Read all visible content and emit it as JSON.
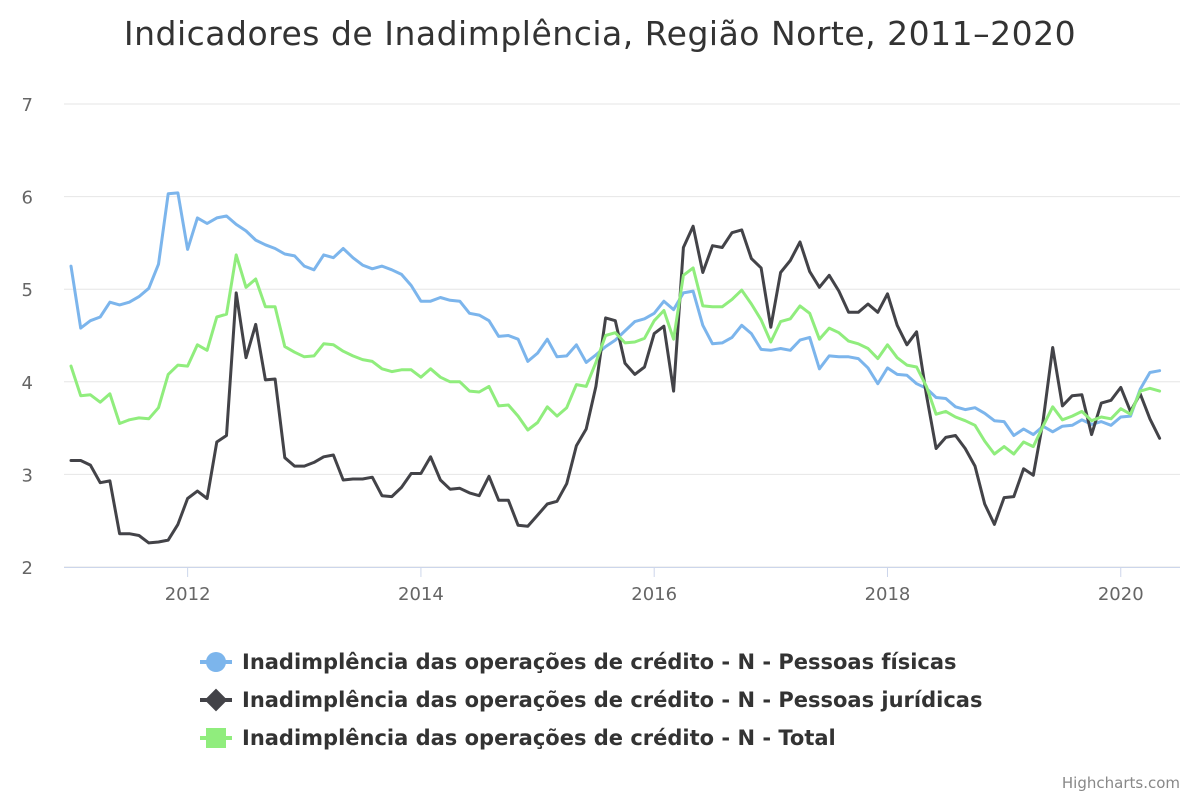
{
  "chart_data": {
    "type": "line",
    "title": "Indicadores de Inadimplência, Região Norte, 2011–2020",
    "xlabel": "",
    "ylabel": "",
    "x_start": "2011-01",
    "x_ticks": [
      {
        "label": "2012",
        "value": "2012-01"
      },
      {
        "label": "2014",
        "value": "2014-01"
      },
      {
        "label": "2016",
        "value": "2016-01"
      },
      {
        "label": "2018",
        "value": "2018-01"
      },
      {
        "label": "2020",
        "value": "2020-01"
      }
    ],
    "xlim": [
      "2011-01",
      "2020-06"
    ],
    "ylim": [
      2,
      7
    ],
    "y_ticks": [
      "2",
      "3",
      "4",
      "5",
      "6",
      "7"
    ],
    "grid": "horizontal",
    "legend_position": "bottom",
    "series": [
      {
        "name": "Inadimplência das operações de crédito - N - Pessoas físicas",
        "color": "#7cb5ec",
        "marker": "circle",
        "values": [
          5.25,
          4.58,
          4.66,
          4.7,
          4.86,
          4.83,
          4.86,
          4.92,
          5.01,
          5.27,
          6.03,
          6.04,
          5.43,
          5.77,
          5.71,
          5.77,
          5.79,
          5.7,
          5.63,
          5.53,
          5.48,
          5.44,
          5.38,
          5.36,
          5.25,
          5.21,
          5.37,
          5.34,
          5.44,
          5.34,
          5.26,
          5.22,
          5.25,
          5.21,
          5.16,
          5.04,
          4.87,
          4.87,
          4.91,
          4.88,
          4.87,
          4.74,
          4.72,
          4.66,
          4.49,
          4.5,
          4.46,
          4.22,
          4.31,
          4.46,
          4.27,
          4.28,
          4.4,
          4.21,
          4.29,
          4.38,
          4.45,
          4.55,
          4.65,
          4.68,
          4.74,
          4.87,
          4.78,
          4.96,
          4.98,
          4.61,
          4.41,
          4.42,
          4.48,
          4.61,
          4.52,
          4.35,
          4.34,
          4.36,
          4.34,
          4.45,
          4.48,
          4.14,
          4.28,
          4.27,
          4.27,
          4.25,
          4.15,
          3.98,
          4.15,
          4.08,
          4.07,
          3.98,
          3.93,
          3.83,
          3.82,
          3.73,
          3.7,
          3.72,
          3.66,
          3.58,
          3.57,
          3.42,
          3.49,
          3.43,
          3.52,
          3.46,
          3.52,
          3.53,
          3.59,
          3.54,
          3.57,
          3.53,
          3.62,
          3.63,
          3.92,
          4.1,
          4.12
        ]
      },
      {
        "name": "Inadimplência das operações de crédito - N - Pessoas jurídicas",
        "color": "#434348",
        "marker": "diamond",
        "values": [
          3.15,
          3.15,
          3.1,
          2.91,
          2.93,
          2.36,
          2.36,
          2.34,
          2.26,
          2.27,
          2.29,
          2.46,
          2.74,
          2.82,
          2.74,
          3.35,
          3.42,
          4.96,
          4.26,
          4.62,
          4.02,
          4.03,
          3.18,
          3.09,
          3.09,
          3.13,
          3.19,
          3.21,
          2.94,
          2.95,
          2.95,
          2.97,
          2.77,
          2.76,
          2.86,
          3.01,
          3.01,
          3.19,
          2.94,
          2.84,
          2.85,
          2.8,
          2.77,
          2.98,
          2.72,
          2.72,
          2.45,
          2.44,
          2.56,
          2.68,
          2.71,
          2.9,
          3.31,
          3.49,
          3.95,
          4.69,
          4.66,
          4.2,
          4.08,
          4.16,
          4.52,
          4.6,
          3.9,
          5.45,
          5.68,
          5.18,
          5.47,
          5.45,
          5.61,
          5.64,
          5.33,
          5.23,
          4.59,
          5.18,
          5.31,
          5.51,
          5.19,
          5.02,
          5.15,
          4.98,
          4.75,
          4.75,
          4.84,
          4.75,
          4.95,
          4.61,
          4.4,
          4.54,
          3.86,
          3.28,
          3.4,
          3.42,
          3.28,
          3.09,
          2.68,
          2.46,
          2.75,
          2.76,
          3.06,
          2.99,
          3.57,
          4.37,
          3.74,
          3.85,
          3.86,
          3.43,
          3.77,
          3.8,
          3.94,
          3.68,
          3.87,
          3.6,
          3.39
        ]
      },
      {
        "name": "Inadimplência das operações de crédito - N - Total",
        "color": "#90ed7d",
        "marker": "square",
        "values": [
          4.17,
          3.85,
          3.86,
          3.78,
          3.87,
          3.55,
          3.59,
          3.61,
          3.6,
          3.72,
          4.08,
          4.18,
          4.17,
          4.4,
          4.34,
          4.7,
          4.73,
          5.37,
          5.02,
          5.11,
          4.81,
          4.81,
          4.38,
          4.32,
          4.27,
          4.28,
          4.41,
          4.4,
          4.33,
          4.28,
          4.24,
          4.22,
          4.14,
          4.11,
          4.13,
          4.13,
          4.05,
          4.14,
          4.05,
          4.0,
          4.0,
          3.9,
          3.89,
          3.95,
          3.74,
          3.75,
          3.63,
          3.48,
          3.56,
          3.73,
          3.63,
          3.72,
          3.97,
          3.95,
          4.21,
          4.5,
          4.53,
          4.42,
          4.43,
          4.47,
          4.66,
          4.77,
          4.46,
          5.15,
          5.23,
          4.82,
          4.81,
          4.81,
          4.89,
          4.99,
          4.84,
          4.67,
          4.43,
          4.65,
          4.68,
          4.82,
          4.74,
          4.46,
          4.58,
          4.53,
          4.44,
          4.41,
          4.36,
          4.25,
          4.4,
          4.26,
          4.18,
          4.16,
          3.95,
          3.65,
          3.68,
          3.62,
          3.58,
          3.53,
          3.36,
          3.22,
          3.3,
          3.22,
          3.35,
          3.3,
          3.52,
          3.73,
          3.59,
          3.63,
          3.68,
          3.58,
          3.62,
          3.6,
          3.71,
          3.65,
          3.9,
          3.93,
          3.9
        ]
      }
    ]
  },
  "credits": "Highcharts.com"
}
